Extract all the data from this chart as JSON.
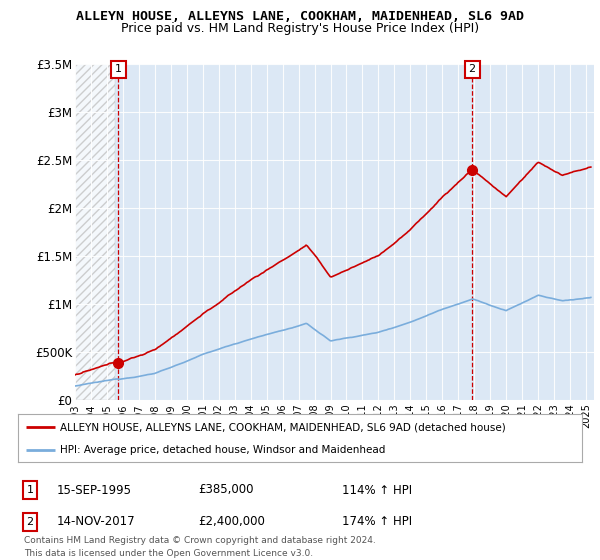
{
  "title": "ALLEYN HOUSE, ALLEYNS LANE, COOKHAM, MAIDENHEAD, SL6 9AD",
  "subtitle": "Price paid vs. HM Land Registry's House Price Index (HPI)",
  "sale1_label": "15-SEP-1995",
  "sale1_price": 385000,
  "sale1_hpi_pct": "114% ↑ HPI",
  "sale2_label": "14-NOV-2017",
  "sale2_price": 2400000,
  "sale2_hpi_pct": "174% ↑ HPI",
  "legend_line1": "ALLEYN HOUSE, ALLEYNS LANE, COOKHAM, MAIDENHEAD, SL6 9AD (detached house)",
  "legend_line2": "HPI: Average price, detached house, Windsor and Maidenhead",
  "footnote": "Contains HM Land Registry data © Crown copyright and database right 2024.\nThis data is licensed under the Open Government Licence v3.0.",
  "property_color": "#cc0000",
  "hpi_color": "#7aaddc",
  "background_color": "#ffffff",
  "plot_bg_color": "#dce8f5",
  "hatch_color": "#cccccc",
  "ylim": [
    0,
    3500000
  ],
  "yticks": [
    0,
    500000,
    1000000,
    1500000,
    2000000,
    2500000,
    3000000,
    3500000
  ],
  "ytick_labels": [
    "£0",
    "£500K",
    "£1M",
    "£1.5M",
    "£2M",
    "£2.5M",
    "£3M",
    "£3.5M"
  ],
  "xmin": 1993.0,
  "xmax": 2025.5,
  "xticks": [
    1993,
    1994,
    1995,
    1996,
    1997,
    1998,
    1999,
    2000,
    2001,
    2002,
    2003,
    2004,
    2005,
    2006,
    2007,
    2008,
    2009,
    2010,
    2011,
    2012,
    2013,
    2014,
    2015,
    2016,
    2017,
    2018,
    2019,
    2020,
    2021,
    2022,
    2023,
    2024,
    2025
  ],
  "sale1_year": 1995.71,
  "sale2_year": 2017.87
}
